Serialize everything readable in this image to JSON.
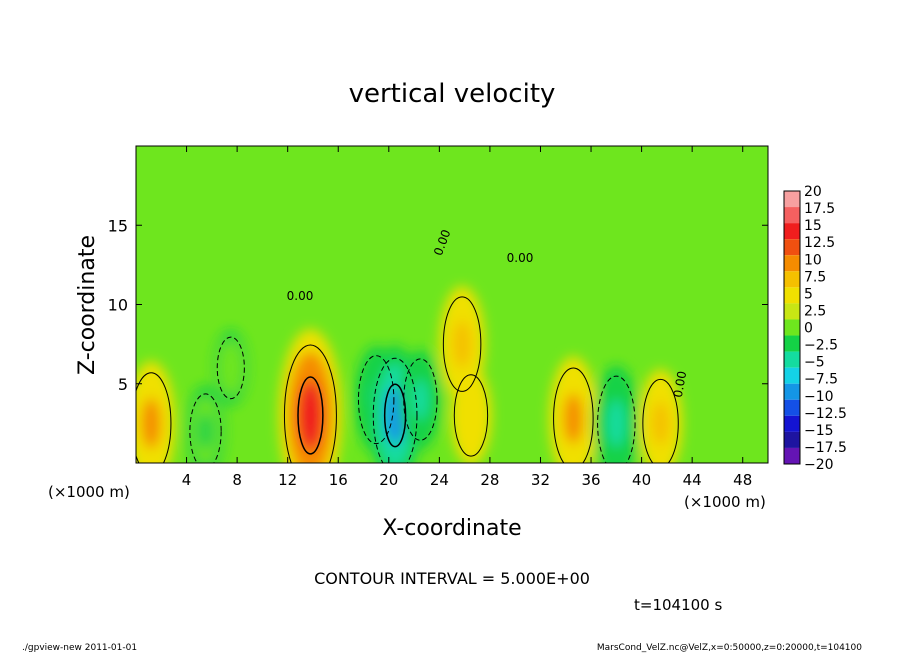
{
  "chart_data": {
    "type": "heatmap",
    "title": "vertical velocity",
    "xlabel": "X-coordinate",
    "ylabel": "Z-coordinate",
    "x_unit": "(×1000 m)",
    "y_unit": "(×1000 m)",
    "xlim": [
      0,
      50
    ],
    "ylim": [
      0,
      20
    ],
    "x_ticks": [
      4,
      8,
      12,
      16,
      20,
      24,
      28,
      32,
      36,
      40,
      44,
      48
    ],
    "y_ticks": [
      5,
      10,
      15
    ],
    "contour_interval_text": "CONTOUR INTERVAL = 5.000E+00",
    "contour_label": "0.00",
    "time_text": "t=104100 s",
    "colorbar": {
      "levels": [
        "20",
        "17.5",
        "15",
        "12.5",
        "10",
        "7.5",
        "5",
        "2.5",
        "0",
        "−2.5",
        "−5",
        "−7.5",
        "−10",
        "−12.5",
        "−15",
        "−17.5",
        "−20"
      ],
      "colors": [
        "#f7a0a0",
        "#f56060",
        "#f01e1e",
        "#f05010",
        "#f58c00",
        "#f5c000",
        "#f0e000",
        "#c8e614",
        "#6ee61e",
        "#14d246",
        "#14dca0",
        "#14d2e6",
        "#1496e6",
        "#1450e6",
        "#1414d2",
        "#1e14a0",
        "#6414b4"
      ]
    },
    "features": [
      {
        "x": 1.2,
        "z": 2.5,
        "value": 8
      },
      {
        "x": 5.5,
        "z": 2.0,
        "value": -4
      },
      {
        "x": 7.5,
        "z": 6.0,
        "value": -2
      },
      {
        "x": 13.8,
        "z": 3.0,
        "value": 14
      },
      {
        "x": 19.0,
        "z": 4.0,
        "value": -6
      },
      {
        "x": 20.5,
        "z": 3.0,
        "value": -10
      },
      {
        "x": 22.5,
        "z": 4.0,
        "value": -5
      },
      {
        "x": 25.8,
        "z": 7.5,
        "value": 7
      },
      {
        "x": 26.5,
        "z": 3.0,
        "value": 5
      },
      {
        "x": 34.6,
        "z": 2.8,
        "value": 8
      },
      {
        "x": 38.0,
        "z": 2.5,
        "value": -7
      },
      {
        "x": 41.5,
        "z": 2.5,
        "value": 6
      }
    ]
  },
  "footer": {
    "left": "./gpview-new   2011-01-01",
    "right": "MarsCond_VelZ.nc@VelZ,x=0:50000,z=0:20000,t=104100"
  }
}
